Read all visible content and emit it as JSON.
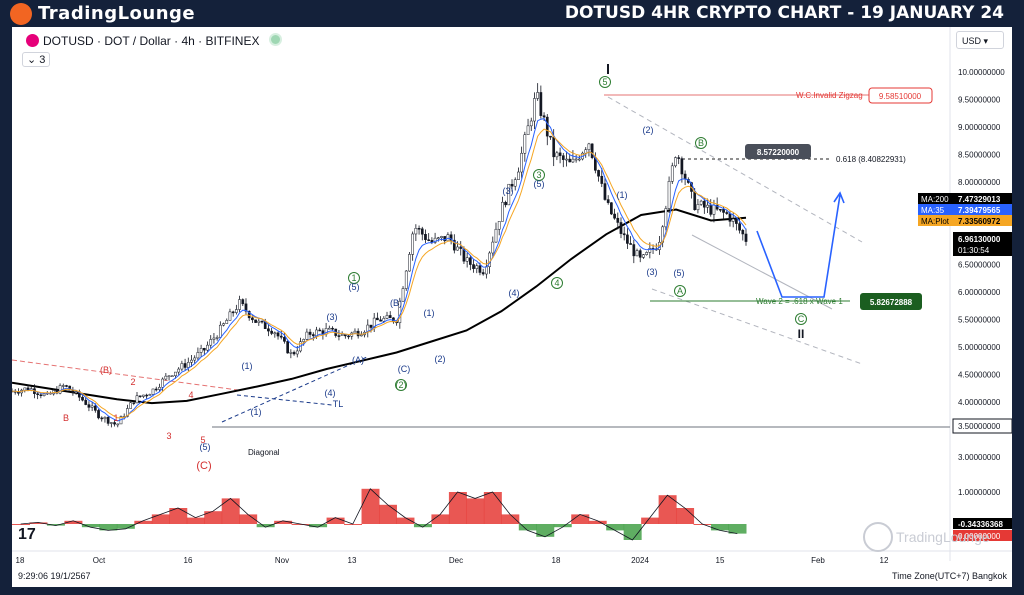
{
  "header": {
    "logo_text": "TradingLounge",
    "title": "DOTUSD 4HR CRYPTO CHART - 19 JANUARY 24"
  },
  "legend": {
    "symbol": "DOTUSD · DOT / Dollar · 4h · BITFINEX",
    "layers_count": "3"
  },
  "currency_button": "USD",
  "colors": {
    "background_frame": "#14213a",
    "up_candle": "#131722",
    "ma200": "#000000",
    "ma35": "#2962ff",
    "ma_plot": "#f5a623",
    "projection": "#2962ff",
    "invalid_label": "#e53935",
    "target_label_bg": "#1b5e20",
    "osc_positive": "#43a047",
    "osc_negative": "#e53935",
    "wave_green": "#2e7d32",
    "wave_blue": "#1a3a8a",
    "wave_red": "#d32f2f"
  },
  "chart_data": {
    "type": "candlestick",
    "timeframe": "4h",
    "symbol": "DOTUSD",
    "y_axis": {
      "ticks": [
        "10.00000000",
        "9.50000000",
        "9.00000000",
        "8.50000000",
        "8.00000000",
        "7.50000000",
        "7.00000000",
        "6.50000000",
        "6.00000000",
        "5.50000000",
        "5.00000000",
        "4.50000000",
        "4.00000000",
        "3.50000000",
        "3.00000000"
      ],
      "ylim": [
        2.75,
        10.25
      ]
    },
    "x_axis": {
      "ticks": [
        "18",
        "Oct",
        "16",
        "Nov",
        "13",
        "Dec",
        "18",
        "2024",
        "15",
        "Feb",
        "12"
      ]
    },
    "price_path": [
      4.2,
      4.25,
      4.1,
      4.3,
      4.05,
      3.75,
      3.58,
      4.05,
      4.2,
      4.5,
      4.7,
      4.95,
      5.35,
      5.8,
      5.45,
      5.3,
      4.85,
      5.25,
      5.3,
      5.2,
      5.3,
      5.5,
      5.5,
      7.2,
      6.9,
      7.0,
      6.55,
      6.4,
      7.5,
      8.3,
      9.58,
      8.5,
      8.3,
      8.75,
      7.6,
      7.0,
      6.55,
      6.9,
      8.6,
      7.6,
      7.5,
      7.4,
      6.96
    ],
    "ma200": [
      4.35,
      4.25,
      4.15,
      4.05,
      3.98,
      4.02,
      4.15,
      4.28,
      4.42,
      4.6,
      4.75,
      4.9,
      5.1,
      5.3,
      5.65,
      6.1,
      6.6,
      7.05,
      7.4,
      7.5,
      7.3,
      7.35
    ],
    "indicators": [
      {
        "name": "MA:200",
        "value": "7.47329013"
      },
      {
        "name": "MA:35",
        "value": "7.39479565"
      },
      {
        "name": "MA:Plot",
        "value": "7.33560972"
      }
    ],
    "last_price": "6.96130000",
    "countdown": "01:30:54",
    "levels": [
      {
        "label": "W.C.Invalid Zigzag",
        "value": "9.58510000"
      },
      {
        "label": "0.618 (8.40822931)",
        "value": "8.57220000"
      },
      {
        "label": "Wave 2 = .618 x Wave 1",
        "value": "5.82672888"
      },
      {
        "label": "",
        "value": "3.50000000"
      }
    ],
    "oscillator": {
      "value": "-0.34336368",
      "ticks": [
        "1.00000000",
        "0.00000000"
      ],
      "values": [
        0.0,
        0.05,
        -0.05,
        0.1,
        -0.1,
        -0.2,
        -0.15,
        0.1,
        0.3,
        0.5,
        0.2,
        0.4,
        0.8,
        0.3,
        -0.1,
        0.1,
        0.0,
        -0.1,
        0.2,
        0.0,
        1.1,
        0.6,
        0.2,
        -0.1,
        0.3,
        1.0,
        0.8,
        1.0,
        0.3,
        -0.2,
        -0.4,
        -0.1,
        0.3,
        0.1,
        -0.2,
        -0.5,
        0.2,
        0.9,
        0.5,
        0.0,
        -0.2,
        -0.3
      ]
    },
    "wave_labels": [
      "1",
      "(5)",
      "(B)",
      "(1)",
      "(3)",
      "(A)",
      "(C)",
      "(2)",
      "(4)",
      "(1)",
      "(2)",
      "2",
      "(3)",
      "(5)",
      "(4)",
      "4",
      "3",
      "5",
      "(2)",
      "(1)",
      "(3)",
      "(5)",
      "(4)",
      "A",
      "B",
      "C",
      "I",
      "II",
      "(B)",
      "2",
      "4",
      "B",
      "1",
      "3",
      "5",
      "(1)",
      "(2)",
      "(3)",
      "(C)",
      "(4)",
      "(5)",
      "(2)",
      "(4)"
    ],
    "text_labels": [
      "Diagonal",
      "TL"
    ]
  },
  "footer": {
    "datetime": "9:29:06 19/1/2567",
    "timezone": "Time Zone(UTC+7) Bangkok",
    "watermark": "TradingLounge"
  }
}
